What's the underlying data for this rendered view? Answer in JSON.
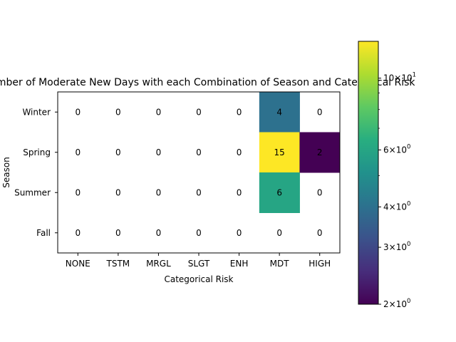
{
  "chart_data": {
    "type": "heatmap",
    "title": "Number of Moderate New Days with each Combination of Season and Categorical Risk",
    "xlabel": "Categorical Risk",
    "ylabel": "Season",
    "x_categories": [
      "NONE",
      "TSTM",
      "MRGL",
      "SLGT",
      "ENH",
      "MDT",
      "HIGH"
    ],
    "y_categories": [
      "Winter",
      "Spring",
      "Summer",
      "Fall"
    ],
    "values": [
      [
        0,
        0,
        0,
        0,
        0,
        4,
        0
      ],
      [
        0,
        0,
        0,
        0,
        0,
        15,
        2
      ],
      [
        0,
        0,
        0,
        0,
        0,
        6,
        0
      ],
      [
        0,
        0,
        0,
        0,
        0,
        0,
        0
      ]
    ],
    "colormap": "viridis",
    "color_scale": "log",
    "color_range": [
      2,
      13
    ],
    "colorbar_ticks": [
      {
        "base": "2",
        "exp": "0",
        "value": 2
      },
      {
        "base": "3",
        "exp": "0",
        "value": 3
      },
      {
        "base": "4",
        "exp": "0",
        "value": 4
      },
      {
        "base": "6",
        "exp": "0",
        "value": 6
      },
      {
        "base": "10",
        "exp": "1",
        "value": 10
      }
    ],
    "colorbar_minor_ticks": [
      5,
      7,
      8,
      9
    ]
  }
}
